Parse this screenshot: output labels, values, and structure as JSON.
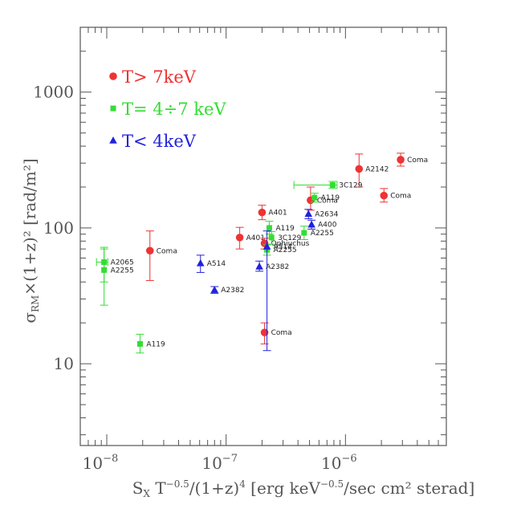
{
  "chart_data": {
    "type": "scatter",
    "title": "",
    "xscale": "log",
    "yscale": "log",
    "xlim": [
      6e-09,
      7e-06
    ],
    "ylim": [
      2.5,
      3000
    ],
    "x_ticks": [
      {
        "value": 1e-08,
        "base": "10",
        "exp": "−8"
      },
      {
        "value": 1e-07,
        "base": "10",
        "exp": "−7"
      },
      {
        "value": 1e-06,
        "base": "10",
        "exp": "−6"
      }
    ],
    "y_ticks": [
      {
        "value": 10,
        "label": "10"
      },
      {
        "value": 100,
        "label": "100"
      },
      {
        "value": 1000,
        "label": "1000"
      }
    ],
    "xlabel": {
      "s": "S",
      "s_sub": "X",
      "t": " T",
      "t_sup": "−0.5",
      "mid": "/(1+z)",
      "z_sup": "4",
      "unit": " [erg keV",
      "unit_sup": "−0.5",
      "tail": "/sec cm² sterad]"
    },
    "ylabel": {
      "sigma": "σ",
      "sub": "RM",
      "rest": "×(1+z)² [rad/m²]"
    },
    "legend": [
      {
        "label": "T> 7keV",
        "color": "#ee3333",
        "marker": "circle"
      },
      {
        "label": "T= 4÷7 keV",
        "color": "#33dd33",
        "marker": "square"
      },
      {
        "label": "T< 4keV",
        "color": "#2222dd",
        "marker": "triangle"
      }
    ],
    "series": [
      {
        "name": "T> 7keV",
        "color": "#ee3333",
        "marker": "circle",
        "points": [
          {
            "x": 2.3e-08,
            "y": 68,
            "ylo": 41,
            "yhi": 95,
            "label": "Coma"
          },
          {
            "x": 1.3e-07,
            "y": 85,
            "ylo": 70,
            "yhi": 101,
            "label": "A401"
          },
          {
            "x": 2e-07,
            "y": 130,
            "ylo": 115,
            "yhi": 147,
            "label": "A401"
          },
          {
            "x": 2.1e-07,
            "y": 77,
            "ylo": 70,
            "yhi": 84,
            "label": "Ophiuchus"
          },
          {
            "x": 2.1e-07,
            "y": 17,
            "ylo": 14,
            "yhi": 20,
            "label": "Coma"
          },
          {
            "x": 5.1e-07,
            "y": 160,
            "ylo": 135,
            "yhi": 200,
            "label": "Coma"
          },
          {
            "x": 1.3e-06,
            "y": 272,
            "ylo": 200,
            "yhi": 350,
            "label": "A2142"
          },
          {
            "x": 2.1e-06,
            "y": 173,
            "ylo": 155,
            "yhi": 195,
            "label": "Coma"
          },
          {
            "x": 2.9e-06,
            "y": 318,
            "ylo": 285,
            "yhi": 355,
            "label": "Coma"
          }
        ]
      },
      {
        "name": "T= 4÷7 keV",
        "color": "#33dd33",
        "marker": "square",
        "points": [
          {
            "x": 9.5e-09,
            "y": 56,
            "ylo": 40,
            "yhi": 72,
            "xlo": 8.2e-09,
            "xhi": 1.02e-08,
            "label": "A2065"
          },
          {
            "x": 9.5e-09,
            "y": 49,
            "ylo": 27,
            "yhi": 70,
            "label": "A2255"
          },
          {
            "x": 1.9e-08,
            "y": 14,
            "ylo": 12,
            "yhi": 16.5,
            "label": "A119"
          },
          {
            "x": 2.3e-07,
            "y": 100,
            "ylo": 90,
            "yhi": 112,
            "label": "A119"
          },
          {
            "x": 2.4e-07,
            "y": 85,
            "ylo": 76,
            "yhi": 94,
            "label": "3C129"
          },
          {
            "x": 2.2e-07,
            "y": 69,
            "ylo": 63,
            "yhi": 75,
            "label": "A2255"
          },
          {
            "x": 4.5e-07,
            "y": 92,
            "ylo": 82,
            "yhi": 103,
            "label": "A2255"
          },
          {
            "x": 5.5e-07,
            "y": 167,
            "ylo": 155,
            "yhi": 180,
            "label": "A119"
          },
          {
            "x": 7.8e-07,
            "y": 207,
            "ylo": 195,
            "yhi": 220,
            "xlo": 3.7e-07,
            "xhi": 8.5e-07,
            "label": "3C129"
          }
        ]
      },
      {
        "name": "T< 4keV",
        "color": "#2222dd",
        "marker": "triangle",
        "points": [
          {
            "x": 6.1e-08,
            "y": 55,
            "ylo": 47,
            "yhi": 63,
            "label": "A514"
          },
          {
            "x": 8e-08,
            "y": 35,
            "ylo": 33,
            "yhi": 37,
            "label": "A2382"
          },
          {
            "x": 1.9e-07,
            "y": 52,
            "ylo": 48,
            "yhi": 57,
            "label": "A2382"
          },
          {
            "x": 2.2e-07,
            "y": 73,
            "ylo": 12.5,
            "yhi": 95,
            "label": "A514"
          },
          {
            "x": 4.9e-07,
            "y": 127,
            "ylo": 117,
            "yhi": 137,
            "label": "A2634"
          },
          {
            "x": 5.2e-07,
            "y": 106,
            "ylo": 98,
            "yhi": 114,
            "label": "A400"
          }
        ]
      }
    ]
  }
}
